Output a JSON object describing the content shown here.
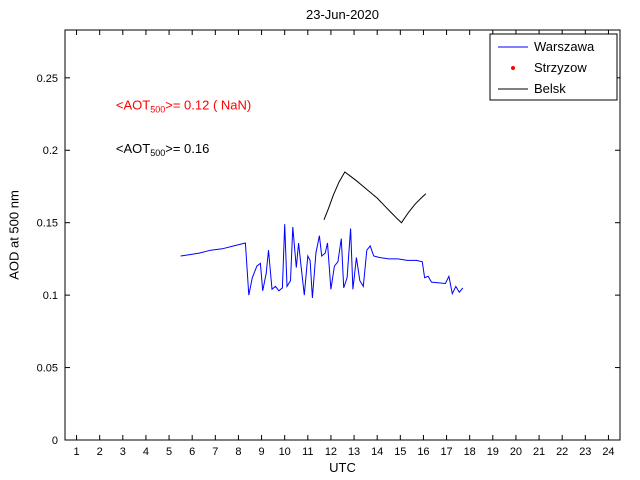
{
  "chart_data": {
    "type": "line",
    "title": "23-Jun-2020",
    "xlabel": "UTC",
    "ylabel": "AOD at 500 nm",
    "xlim": [
      0.5,
      24.5
    ],
    "ylim": [
      0,
      0.283
    ],
    "xticks": [
      1,
      2,
      3,
      4,
      5,
      6,
      7,
      8,
      9,
      10,
      11,
      12,
      13,
      14,
      15,
      16,
      17,
      18,
      19,
      20,
      21,
      22,
      23,
      24
    ],
    "yticks": [
      0,
      0.05,
      0.1,
      0.15,
      0.2,
      0.25
    ],
    "ytick_labels": [
      "0",
      "0.05",
      "0.1",
      "0.15",
      "0.2",
      "0.25"
    ],
    "grid": false,
    "legend_position": "top-right",
    "annotations": [
      {
        "prefix": "<AOT",
        "sub": "500",
        "suffix": ">= 0.12 ( NaN)",
        "color": "#ff0000",
        "x": 2.7,
        "y": 0.228
      },
      {
        "prefix": "<AOT",
        "sub": "500",
        "suffix": ">= 0.16",
        "color": "#000000",
        "x": 2.7,
        "y": 0.198
      }
    ],
    "legend": [
      {
        "label": "Warszawa",
        "color": "#0000ff",
        "marker": "line"
      },
      {
        "label": "Strzyzow",
        "color": "#ff0000",
        "marker": "dot"
      },
      {
        "label": "Belsk",
        "color": "#000000",
        "marker": "line"
      }
    ],
    "series": [
      {
        "name": "Warszawa",
        "color": "#0000ff",
        "points": [
          [
            5.5,
            0.127
          ],
          [
            5.9,
            0.128
          ],
          [
            6.3,
            0.129
          ],
          [
            6.8,
            0.131
          ],
          [
            7.3,
            0.132
          ],
          [
            7.8,
            0.134
          ],
          [
            8.3,
            0.136
          ],
          [
            8.45,
            0.1
          ],
          [
            8.6,
            0.112
          ],
          [
            8.8,
            0.12
          ],
          [
            8.95,
            0.122
          ],
          [
            9.05,
            0.103
          ],
          [
            9.2,
            0.115
          ],
          [
            9.3,
            0.131
          ],
          [
            9.45,
            0.104
          ],
          [
            9.6,
            0.106
          ],
          [
            9.75,
            0.103
          ],
          [
            9.9,
            0.105
          ],
          [
            10.0,
            0.149
          ],
          [
            10.1,
            0.106
          ],
          [
            10.25,
            0.11
          ],
          [
            10.35,
            0.147
          ],
          [
            10.5,
            0.119
          ],
          [
            10.6,
            0.136
          ],
          [
            10.7,
            0.121
          ],
          [
            10.85,
            0.1
          ],
          [
            11.0,
            0.127
          ],
          [
            11.1,
            0.124
          ],
          [
            11.2,
            0.098
          ],
          [
            11.35,
            0.129
          ],
          [
            11.5,
            0.141
          ],
          [
            11.6,
            0.127
          ],
          [
            11.75,
            0.129
          ],
          [
            11.85,
            0.136
          ],
          [
            12.0,
            0.104
          ],
          [
            12.15,
            0.12
          ],
          [
            12.3,
            0.123
          ],
          [
            12.45,
            0.139
          ],
          [
            12.55,
            0.105
          ],
          [
            12.7,
            0.112
          ],
          [
            12.85,
            0.146
          ],
          [
            12.95,
            0.104
          ],
          [
            13.1,
            0.126
          ],
          [
            13.25,
            0.11
          ],
          [
            13.4,
            0.106
          ],
          [
            13.55,
            0.131
          ],
          [
            13.7,
            0.134
          ],
          [
            13.85,
            0.127
          ],
          [
            14.1,
            0.126
          ],
          [
            14.5,
            0.125
          ],
          [
            14.9,
            0.125
          ],
          [
            15.3,
            0.124
          ],
          [
            15.7,
            0.124
          ],
          [
            15.95,
            0.123
          ],
          [
            16.05,
            0.112
          ],
          [
            16.2,
            0.113
          ],
          [
            16.35,
            0.109
          ],
          [
            16.95,
            0.108
          ],
          [
            17.1,
            0.113
          ],
          [
            17.25,
            0.101
          ],
          [
            17.4,
            0.106
          ],
          [
            17.55,
            0.102
          ],
          [
            17.7,
            0.105
          ]
        ]
      },
      {
        "name": "Strzyzow",
        "color": "#ff0000",
        "points": []
      },
      {
        "name": "Belsk",
        "color": "#000000",
        "points": [
          [
            11.7,
            0.152
          ],
          [
            11.9,
            0.16
          ],
          [
            12.1,
            0.169
          ],
          [
            12.35,
            0.178
          ],
          [
            12.6,
            0.185
          ],
          [
            12.85,
            0.182
          ],
          [
            13.1,
            0.179
          ],
          [
            13.4,
            0.175
          ],
          [
            13.7,
            0.171
          ],
          [
            14.0,
            0.167
          ],
          [
            14.3,
            0.162
          ],
          [
            14.6,
            0.157
          ],
          [
            14.85,
            0.153
          ],
          [
            15.05,
            0.15
          ],
          [
            15.35,
            0.157
          ],
          [
            15.65,
            0.163
          ],
          [
            15.9,
            0.167
          ],
          [
            16.1,
            0.17
          ]
        ]
      }
    ]
  }
}
